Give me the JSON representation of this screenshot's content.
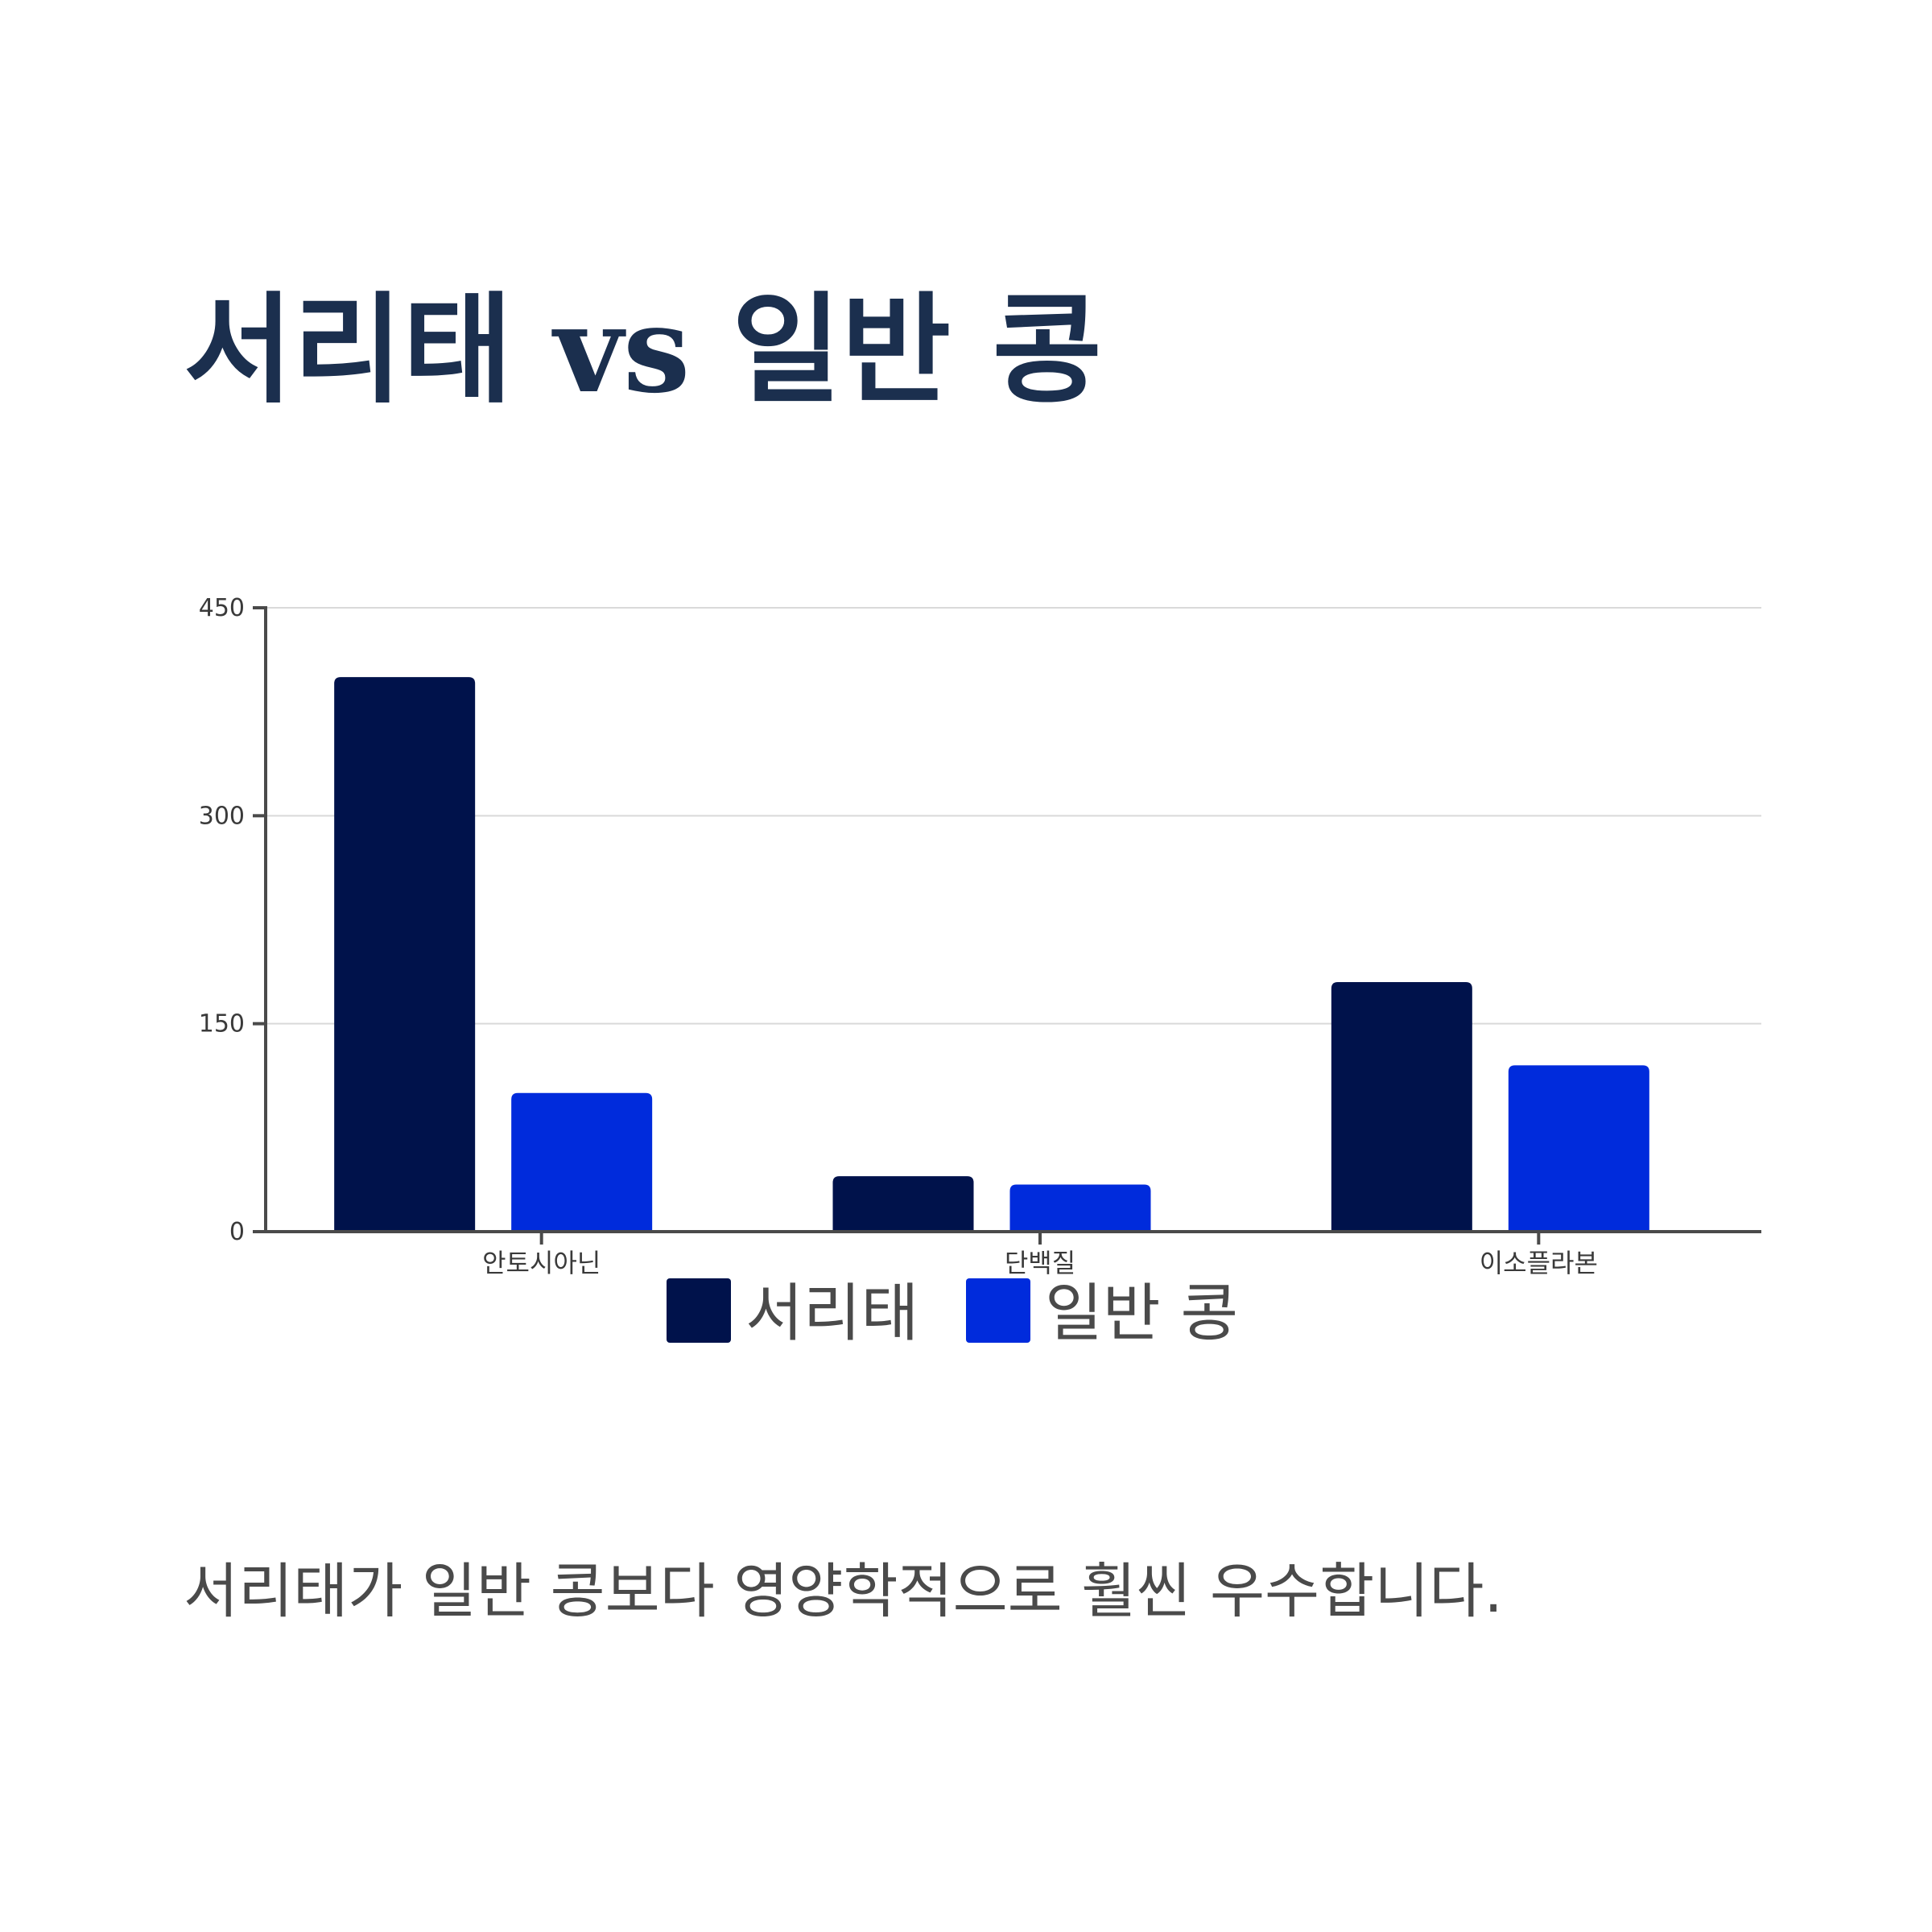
{
  "title": "서리태 vs 일반 콩",
  "caption": "서리태가 일반 콩보다 영양학적으로 훨씬 우수합니다.",
  "chart_data": {
    "type": "bar",
    "title": "",
    "xlabel": "",
    "ylabel": "",
    "categories": [
      "안토시아닌",
      "단백질",
      "이소플라본"
    ],
    "series": [
      {
        "name": "서리태",
        "values": [
          400,
          40,
          180
        ],
        "color": "#00124b"
      },
      {
        "name": "일반 콩",
        "values": [
          100,
          34,
          120
        ],
        "color": "#002bdc"
      }
    ],
    "ylim": [
      0,
      450
    ],
    "yticks": [
      0,
      150,
      300,
      450
    ],
    "grid": true,
    "legend": "bottom-center",
    "colors": {
      "axis": "#4a4a4a",
      "grid": "#d9d9d9",
      "tick_text": "#3a3a3a",
      "legend_text": "#4a4a4a"
    }
  }
}
